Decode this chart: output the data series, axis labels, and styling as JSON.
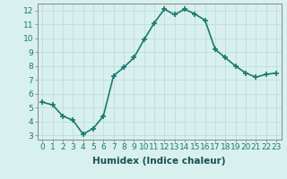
{
  "x": [
    0,
    1,
    2,
    3,
    4,
    5,
    6,
    7,
    8,
    9,
    10,
    11,
    12,
    13,
    14,
    15,
    16,
    17,
    18,
    19,
    20,
    21,
    22,
    23
  ],
  "y": [
    5.4,
    5.2,
    4.4,
    4.1,
    3.1,
    3.5,
    4.4,
    7.3,
    7.9,
    8.6,
    9.9,
    11.1,
    12.1,
    11.7,
    12.1,
    11.75,
    11.3,
    9.2,
    8.6,
    8.0,
    7.5,
    7.2,
    7.4,
    7.5
  ],
  "line_color": "#1a7a6e",
  "marker": "+",
  "marker_size": 4,
  "bg_color": "#d8f0ee",
  "grid_color": "#c0deda",
  "xlabel": "Humidex (Indice chaleur)",
  "ylim": [
    2.7,
    12.5
  ],
  "xlim": [
    -0.5,
    23.5
  ],
  "yticks": [
    3,
    4,
    5,
    6,
    7,
    8,
    9,
    10,
    11,
    12
  ],
  "xticks": [
    0,
    1,
    2,
    3,
    4,
    5,
    6,
    7,
    8,
    9,
    10,
    11,
    12,
    13,
    14,
    15,
    16,
    17,
    18,
    19,
    20,
    21,
    22,
    23
  ],
  "xtick_labels": [
    "0",
    "1",
    "2",
    "3",
    "4",
    "5",
    "6",
    "7",
    "8",
    "9",
    "10",
    "11",
    "12",
    "13",
    "14",
    "15",
    "16",
    "17",
    "18",
    "19",
    "20",
    "21",
    "22",
    "23"
  ],
  "linewidth": 1.2,
  "xlabel_fontsize": 7.5,
  "tick_fontsize": 6.5,
  "tick_color": "#1a7a6e",
  "label_color": "#1a5050"
}
